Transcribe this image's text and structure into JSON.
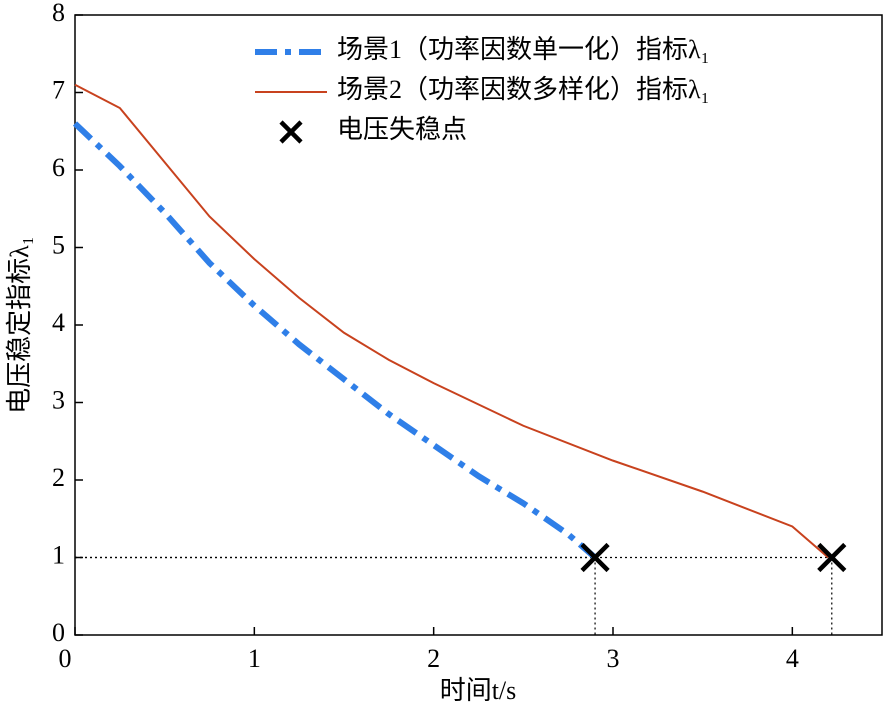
{
  "chart_data": {
    "type": "line",
    "xlabel": "时间t/s",
    "ylabel": "电压稳定指标λ₁",
    "xlim": [
      0,
      4.5
    ],
    "xticks": [
      0,
      1,
      2,
      3,
      4
    ],
    "ylim": [
      0,
      8
    ],
    "yticks": [
      0,
      1,
      2,
      3,
      4,
      5,
      6,
      7,
      8
    ],
    "legend": "upper right",
    "series": [
      {
        "name": "场景1（功率因数单一化）指标λ₁",
        "color": "#2f7fe8",
        "dash": "dashdot",
        "x": [
          0,
          0.25,
          0.5,
          0.75,
          1,
          1.25,
          1.5,
          1.75,
          2,
          2.25,
          2.5,
          2.75,
          2.9
        ],
        "values": [
          6.6,
          6.05,
          5.45,
          4.8,
          4.25,
          3.75,
          3.3,
          2.85,
          2.45,
          2.05,
          1.7,
          1.3,
          1.0
        ]
      },
      {
        "name": "场景2（功率因数多样化）指标λ₁",
        "color": "#c8421e",
        "dash": "solid",
        "x": [
          0,
          0.25,
          0.5,
          0.75,
          1,
          1.25,
          1.5,
          1.75,
          2,
          2.5,
          3,
          3.5,
          4,
          4.2
        ],
        "values": [
          7.1,
          6.8,
          6.1,
          5.4,
          4.85,
          4.35,
          3.9,
          3.55,
          3.25,
          2.7,
          2.25,
          1.85,
          1.4,
          1.0
        ]
      }
    ],
    "markers": {
      "name": "电压失稳点",
      "color": "#000000",
      "x": [
        2.9,
        4.22
      ],
      "values": [
        1.0,
        1.0
      ]
    }
  }
}
